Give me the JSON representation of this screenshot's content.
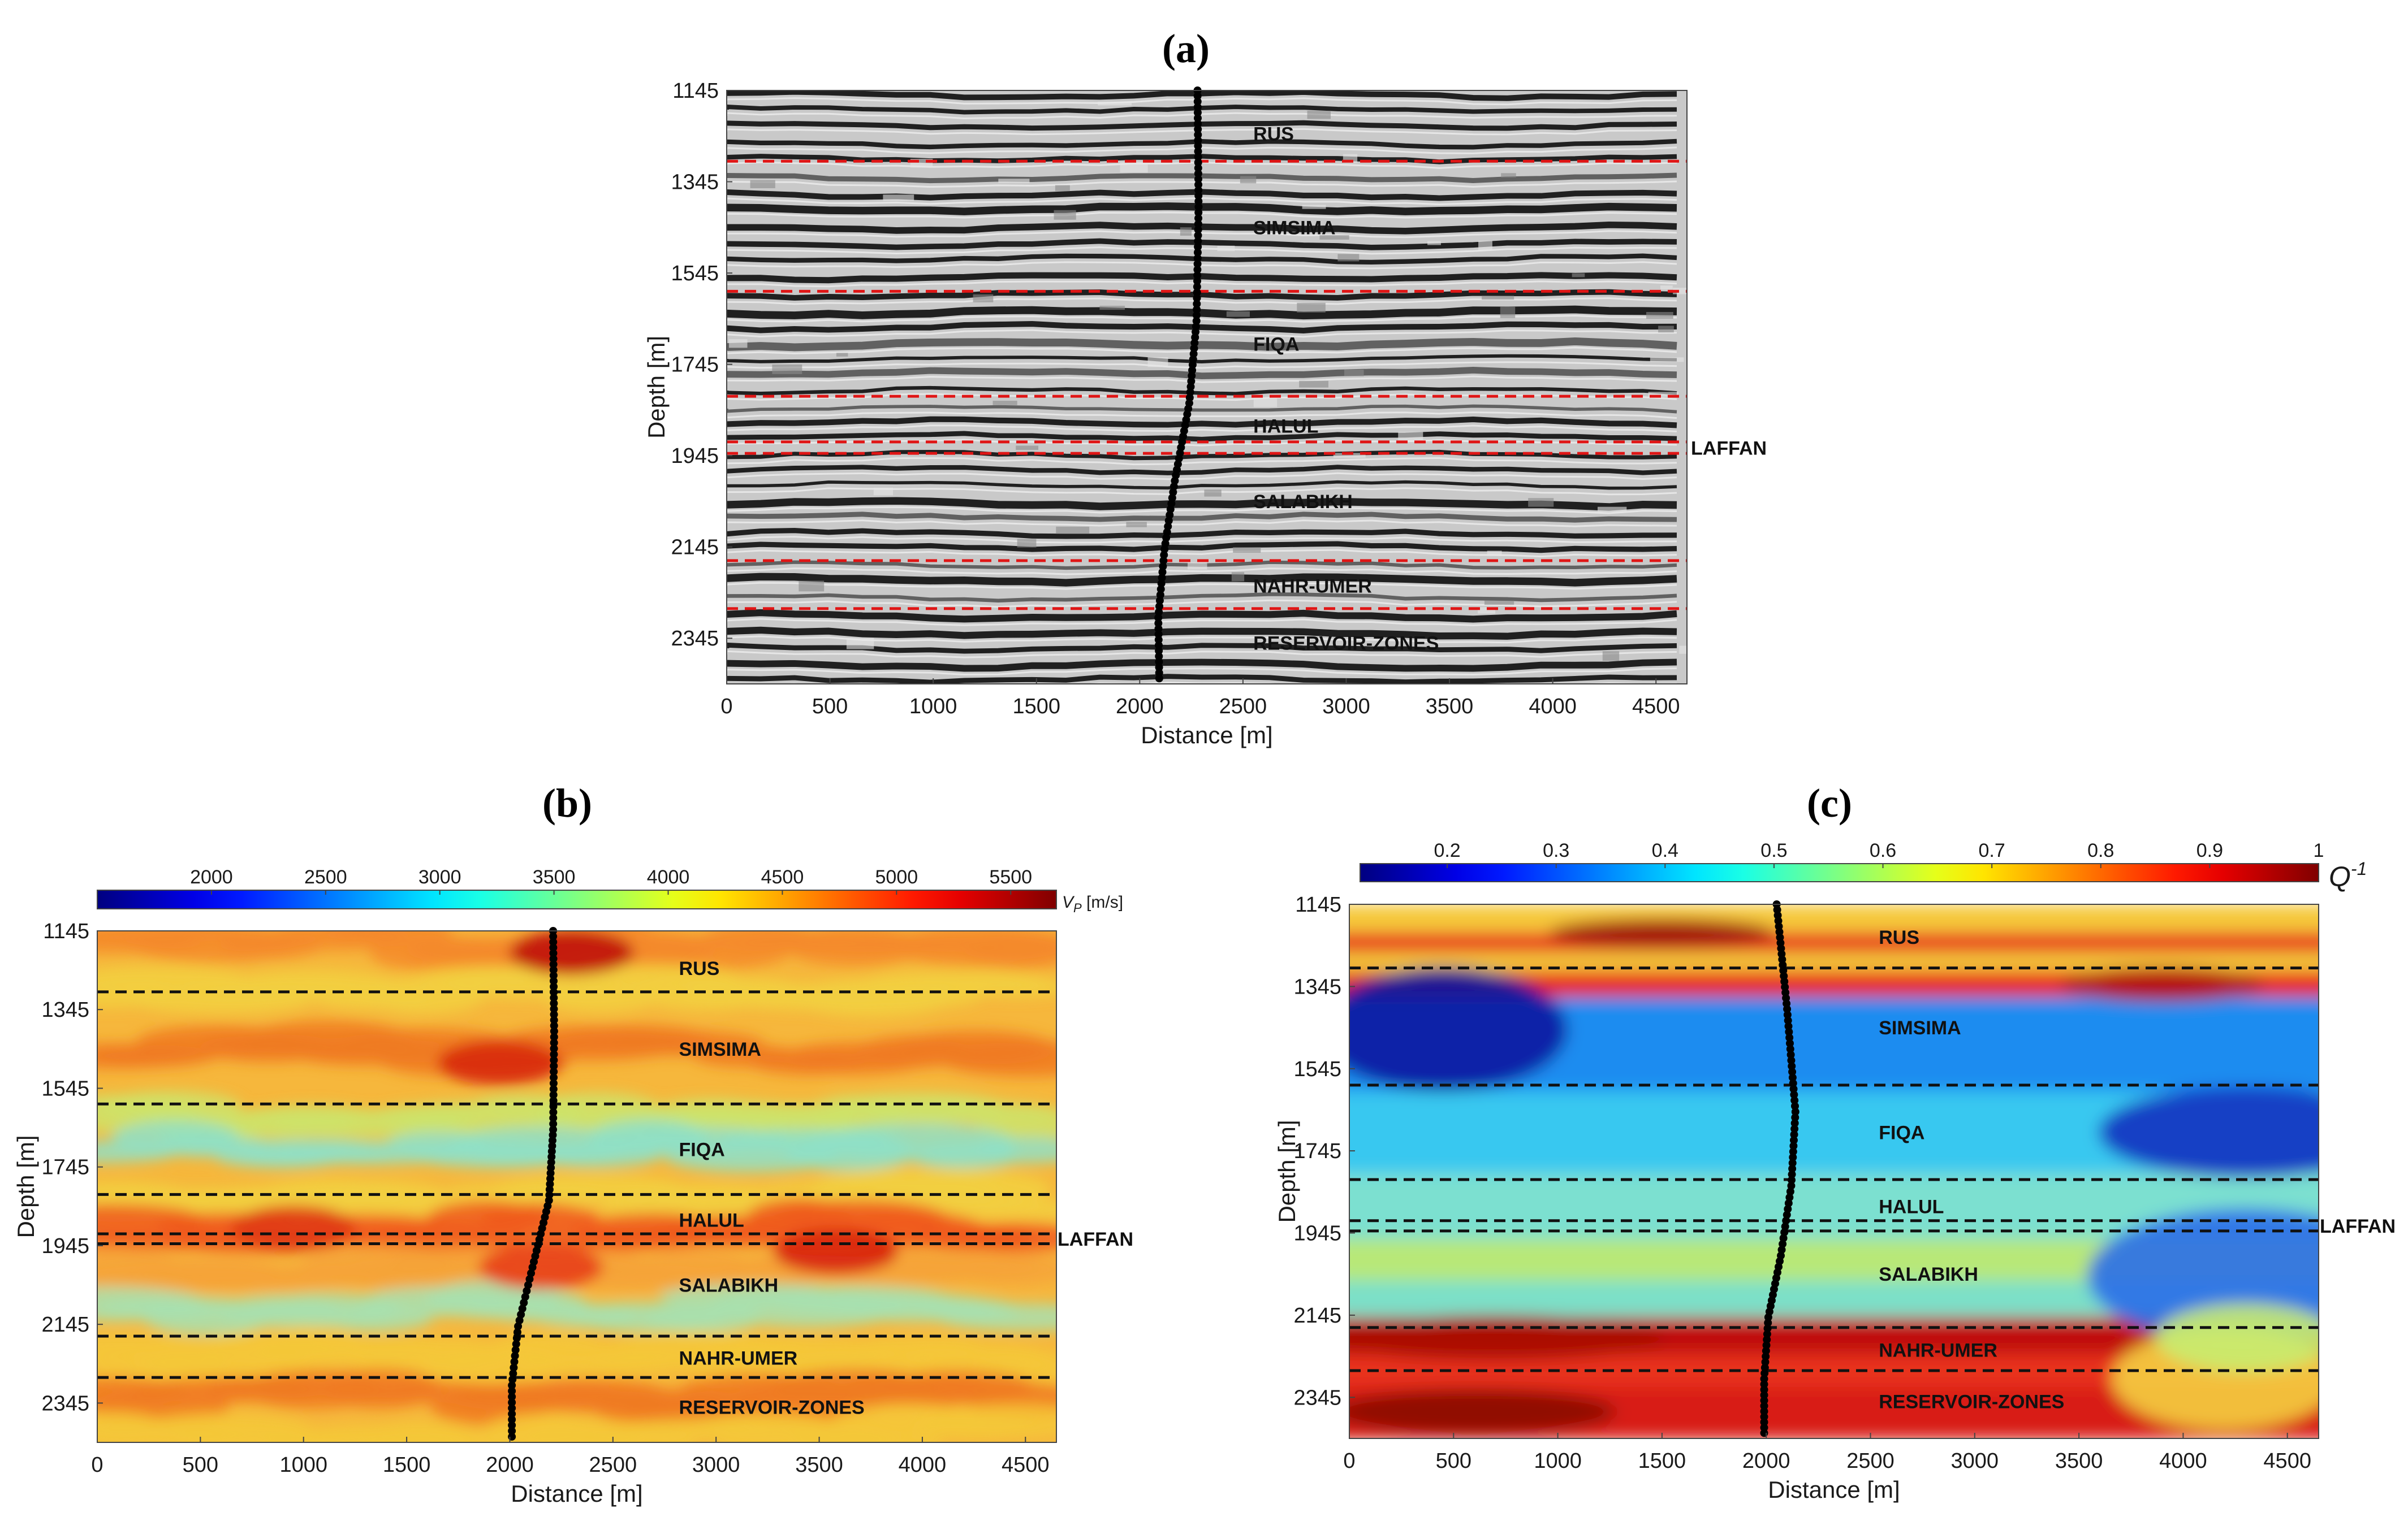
{
  "figure": {
    "panel_labels": [
      "(a)",
      "(b)",
      "(c)"
    ],
    "formations": [
      "RUS",
      "SIMSIMA",
      "FIQA",
      "HALUL",
      "LAFFAN",
      "SALABIKH",
      "NAHR-UMER",
      "RESERVOIR-ZONES"
    ]
  },
  "chart_data": [
    {
      "panel": "(a)",
      "type": "heatmap",
      "description_type": "seismic-section",
      "xlabel": "Distance [m]",
      "ylabel": "Depth [m]",
      "xlim": [
        0,
        4650
      ],
      "ylim": [
        1145,
        2445
      ],
      "xticks": [
        0,
        500,
        1000,
        1500,
        2000,
        2500,
        3000,
        3500,
        4000,
        4500
      ],
      "yticks": [
        1145,
        1345,
        1545,
        1745,
        1945,
        2145,
        2345
      ],
      "horizons": [
        1300,
        1585,
        1815,
        1915,
        1940,
        2175,
        2280
      ],
      "labels": [
        {
          "text": "RUS",
          "x": 2550,
          "y": 1240
        },
        {
          "text": "SIMSIMA",
          "x": 2550,
          "y": 1445
        },
        {
          "text": "FIQA",
          "x": 2550,
          "y": 1700
        },
        {
          "text": "HALUL",
          "x": 2550,
          "y": 1880
        },
        {
          "text": "SALABIKH",
          "x": 2550,
          "y": 2045
        },
        {
          "text": "NAHR-UMER",
          "x": 2550,
          "y": 2230
        },
        {
          "text": "RESERVOIR-ZONES",
          "x": 2550,
          "y": 2355
        }
      ],
      "side_label": {
        "text": "LAFFAN",
        "y": 1928
      },
      "well": [
        [
          2280,
          1145
        ],
        [
          2285,
          1400
        ],
        [
          2275,
          1650
        ],
        [
          2240,
          1830
        ],
        [
          2170,
          2000
        ],
        [
          2120,
          2150
        ],
        [
          2090,
          2300
        ],
        [
          2095,
          2445
        ]
      ]
    },
    {
      "panel": "(b)",
      "type": "heatmap",
      "xlabel": "Distance [m]",
      "ylabel": "Depth [m]",
      "xlim": [
        0,
        4650
      ],
      "ylim": [
        1145,
        2445
      ],
      "xticks": [
        0,
        500,
        1000,
        1500,
        2000,
        2500,
        3000,
        3500,
        4000,
        4500
      ],
      "yticks": [
        1145,
        1345,
        1545,
        1745,
        1945,
        2145,
        2345
      ],
      "colorbar": {
        "label": "V_P [m/s]",
        "ticks": [
          2000,
          2500,
          3000,
          3500,
          4000,
          4500,
          5000,
          5500
        ],
        "range": [
          1500,
          5700
        ]
      },
      "horizons": [
        1300,
        1585,
        1815,
        1915,
        1940,
        2175,
        2280
      ],
      "labels": [
        {
          "text": "RUS",
          "x": 2820,
          "y": 1240
        },
        {
          "text": "SIMSIMA",
          "x": 2820,
          "y": 1445
        },
        {
          "text": "FIQA",
          "x": 2820,
          "y": 1700
        },
        {
          "text": "HALUL",
          "x": 2820,
          "y": 1880
        },
        {
          "text": "SALABIKH",
          "x": 2820,
          "y": 2045
        },
        {
          "text": "NAHR-UMER",
          "x": 2820,
          "y": 2230
        },
        {
          "text": "RESERVOIR-ZONES",
          "x": 2820,
          "y": 2355
        }
      ],
      "side_label": {
        "text": "LAFFAN",
        "y": 1928
      },
      "well": [
        [
          2210,
          1145
        ],
        [
          2215,
          1400
        ],
        [
          2210,
          1650
        ],
        [
          2190,
          1830
        ],
        [
          2110,
          2000
        ],
        [
          2040,
          2150
        ],
        [
          2010,
          2300
        ],
        [
          2010,
          2445
        ]
      ]
    },
    {
      "panel": "(c)",
      "type": "heatmap",
      "xlabel": "Distance [m]",
      "ylabel": "Depth [m]",
      "xlim": [
        0,
        4650
      ],
      "ylim": [
        1145,
        2445
      ],
      "xticks": [
        0,
        500,
        1000,
        1500,
        2000,
        2500,
        3000,
        3500,
        4000,
        4500
      ],
      "yticks": [
        1145,
        1345,
        1545,
        1745,
        1945,
        2145,
        2345
      ],
      "colorbar": {
        "label": "Q^-1",
        "ticks": [
          0.2,
          0.3,
          0.4,
          0.5,
          0.6,
          0.7,
          0.8,
          0.9,
          1
        ],
        "range": [
          0.12,
          1.0
        ]
      },
      "horizons": [
        1300,
        1585,
        1815,
        1915,
        1940,
        2175,
        2280
      ],
      "labels": [
        {
          "text": "RUS",
          "x": 2540,
          "y": 1225
        },
        {
          "text": "SIMSIMA",
          "x": 2540,
          "y": 1445
        },
        {
          "text": "FIQA",
          "x": 2540,
          "y": 1700
        },
        {
          "text": "HALUL",
          "x": 2540,
          "y": 1880
        },
        {
          "text": "SALABIKH",
          "x": 2540,
          "y": 2045
        },
        {
          "text": "NAHR-UMER",
          "x": 2540,
          "y": 2230
        },
        {
          "text": "RESERVOIR-ZONES",
          "x": 2540,
          "y": 2355
        }
      ],
      "side_label": {
        "text": "LAFFAN",
        "y": 1928
      },
      "well": [
        [
          2050,
          1145
        ],
        [
          2100,
          1400
        ],
        [
          2140,
          1650
        ],
        [
          2120,
          1830
        ],
        [
          2070,
          2000
        ],
        [
          2010,
          2150
        ],
        [
          1990,
          2300
        ],
        [
          1990,
          2445
        ]
      ]
    }
  ]
}
